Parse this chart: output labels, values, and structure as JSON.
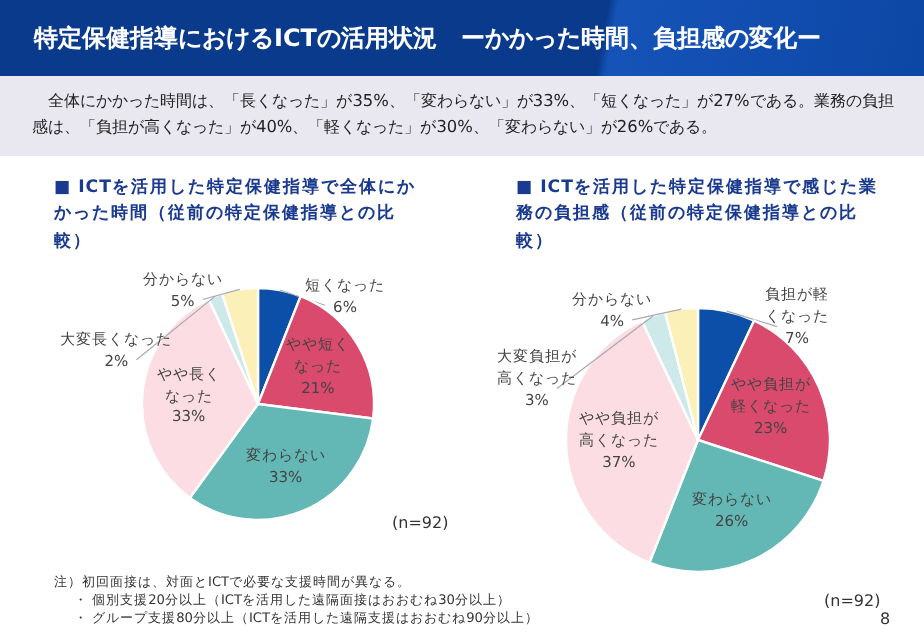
{
  "chart_data": [
    {
      "type": "other",
      "title": "特定保健指導におけるICTの活用状況　ーかかった時間、負担感の変化ー",
      "subtitle": "全体にかかった時間は、「長くなった」が35%、「変わらない」が33%、「短くなった」が27%である。業務の負担感は、「負担が高くなった」が40%、「軽くなった」が30%、「変わらない」が26%である。",
      "annotations": [
        "注）初回面接は、対面とICTで必要な支援時間が異なる。",
        "・ 個別支援20分以上（ICTを活用した遠隔面接はおおむね30分以上）",
        "・ グループ支援80分以上（ICTを活用した遠隔支援はおおむね90分以上）",
        "8"
      ]
    },
    {
      "type": "pie",
      "title": "■ ICTを活用した特定保健指導で全体にかかった時間（従前の特定保健指導との比較）",
      "categories": [
        "短くなった",
        "やや短くなった",
        "変わらない",
        "やや長くなった",
        "大変長くなった",
        "分からない"
      ],
      "values": [
        6,
        21,
        33,
        33,
        2,
        5
      ],
      "colors": [
        "#0b4fa8",
        "#d94a6c",
        "#63b8b5",
        "#fbdde3",
        "#cde9ea",
        "#fbf0b8"
      ],
      "value_labels": [
        "6%",
        "21%",
        "33%",
        "33%",
        "2%",
        "5%"
      ],
      "annotations": [
        "(n=92)"
      ]
    },
    {
      "type": "pie",
      "title": "■ ICTを活用した特定保健指導で感じた業務の負担感（従前の特定保健指導との比較）",
      "categories": [
        "負担が軽くなった",
        "やや負担が軽くなった",
        "変わらない",
        "やや負担が高くなった",
        "大変負担が高くなった",
        "分からない"
      ],
      "values": [
        7,
        23,
        26,
        37,
        3,
        4
      ],
      "colors": [
        "#0b4fa8",
        "#d94a6c",
        "#63b8b5",
        "#fbdde3",
        "#cde9ea",
        "#fbf0b8"
      ],
      "value_labels": [
        "7%",
        "23%",
        "26%",
        "37%",
        "3%",
        "4%"
      ],
      "annotations": [
        "(n=92)"
      ]
    }
  ]
}
